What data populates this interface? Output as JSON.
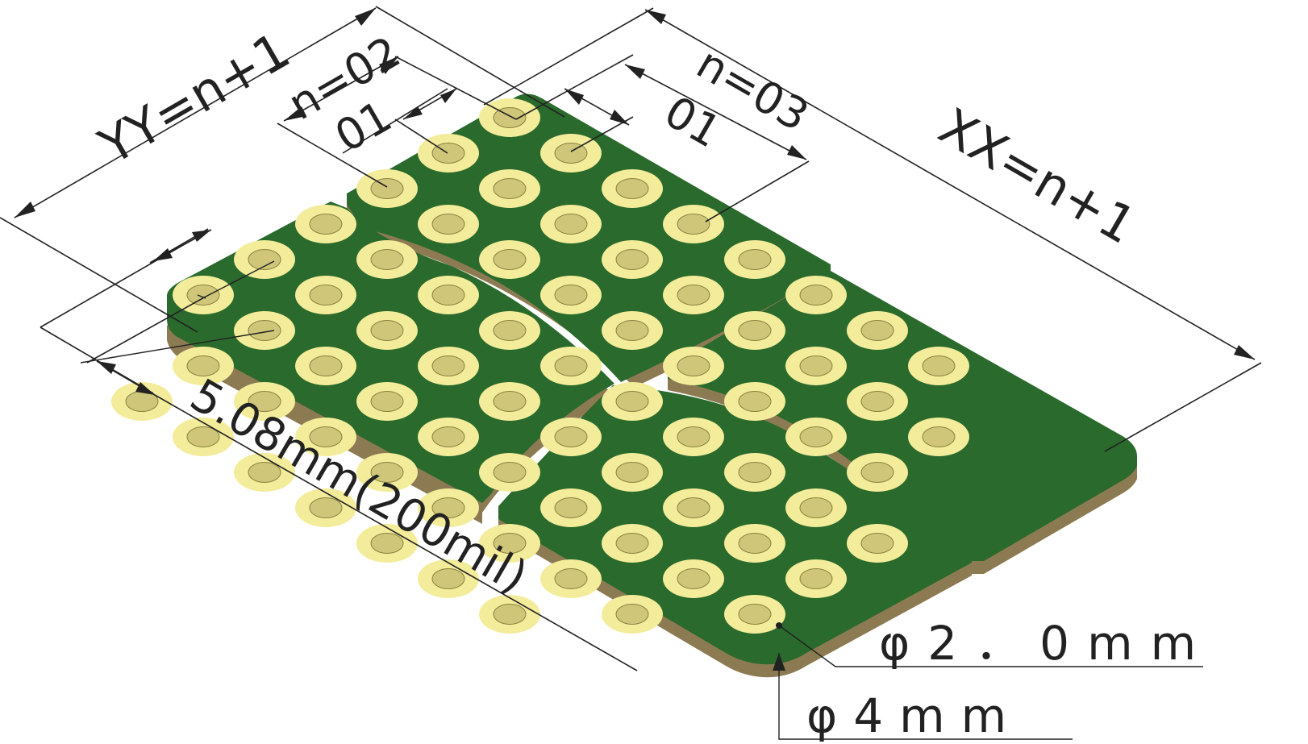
{
  "dimensions": {
    "yy_label": "YY=n+1",
    "n_y_label": "n=02",
    "y_first_label": "01",
    "x_first_label": "01",
    "n_x_label": "n=03",
    "xx_label": "XX=n+1",
    "pitch_label": "5.08mm(200mil)",
    "hole_label": "φ2．0mm",
    "land_label": "φ4mm"
  },
  "colors": {
    "board_green": "#2a6a2c",
    "board_edge": "#8c7a52",
    "board_edge_dark": "#6f5f3e",
    "pad_ring": "#f3ec9a",
    "pad_hole": "#cfc67a",
    "line": "#222222"
  }
}
